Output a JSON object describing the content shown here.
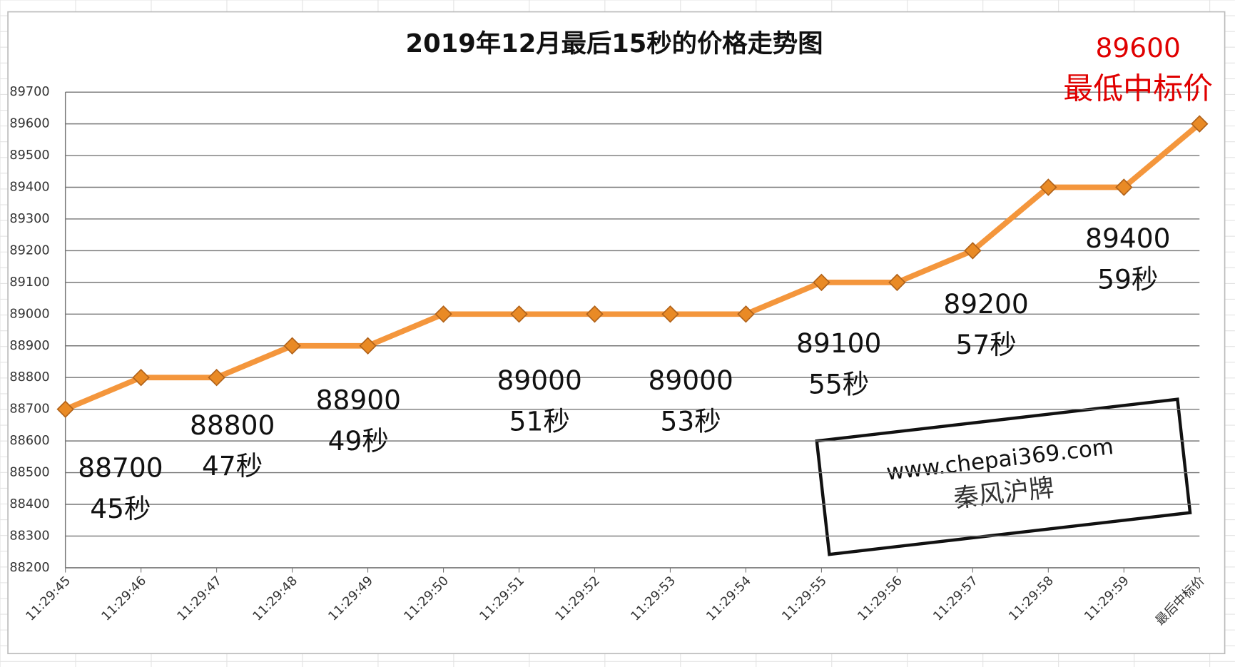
{
  "chart_data": {
    "type": "line",
    "title": "2019年12月最后15秒的价格走势图",
    "categories": [
      "11:29:45",
      "11:29:46",
      "11:29:47",
      "11:29:48",
      "11:29:49",
      "11:29:50",
      "11:29:51",
      "11:29:52",
      "11:29:53",
      "11:29:54",
      "11:29:55",
      "11:29:56",
      "11:29:57",
      "11:29:58",
      "11:29:59",
      "最后中标价"
    ],
    "series": [
      {
        "name": "价格",
        "color": "#f4963c",
        "values": [
          88700,
          88800,
          88800,
          88900,
          88900,
          89000,
          89000,
          89000,
          89000,
          89000,
          89100,
          89100,
          89200,
          89400,
          89400,
          89600
        ]
      }
    ],
    "ylim": [
      88200,
      89700
    ],
    "yticks": [
      88200,
      88300,
      88400,
      88500,
      88600,
      88700,
      88800,
      88900,
      89000,
      89100,
      89200,
      89300,
      89400,
      89500,
      89600,
      89700
    ],
    "grid": true,
    "annotations": [
      [
        "88700",
        "45秒"
      ],
      [
        "88800",
        "47秒"
      ],
      [
        "88900",
        "49秒"
      ],
      [
        "89000",
        "51秒"
      ],
      [
        "89000",
        "53秒"
      ],
      [
        "89100",
        "55秒"
      ],
      [
        "89200",
        "57秒"
      ],
      [
        "89400",
        "59秒"
      ]
    ],
    "highlight": {
      "text": "89600",
      "label": "最低中标价",
      "color": "#e00000"
    },
    "watermark": [
      "www.chepai369.com",
      "秦风沪牌"
    ]
  }
}
